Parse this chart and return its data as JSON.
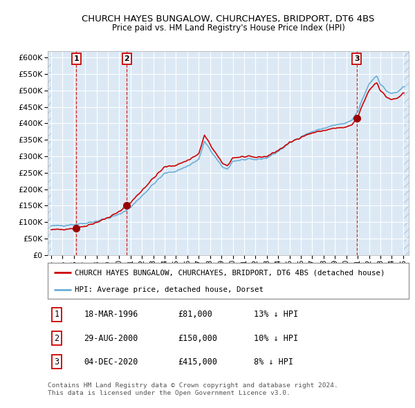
{
  "title1": "CHURCH HAYES BUNGALOW, CHURCHAYES, BRIDPORT, DT6 4BS",
  "title2": "Price paid vs. HM Land Registry's House Price Index (HPI)",
  "legend_house": "CHURCH HAYES BUNGALOW, CHURCHAYES, BRIDPORT, DT6 4BS (detached house)",
  "legend_hpi": "HPI: Average price, detached house, Dorset",
  "sale1_date": "18-MAR-1996",
  "sale1_year": 1996.21,
  "sale1_price": 81000,
  "sale1_label": "1",
  "sale1_pct": "13% ↓ HPI",
  "sale2_date": "29-AUG-2000",
  "sale2_year": 2000.66,
  "sale2_price": 150000,
  "sale2_label": "2",
  "sale2_pct": "10% ↓ HPI",
  "sale3_date": "04-DEC-2020",
  "sale3_year": 2020.92,
  "sale3_price": 415000,
  "sale3_label": "3",
  "sale3_pct": "8% ↓ HPI",
  "xlim_left": 1993.7,
  "xlim_right": 2025.5,
  "ylim_bottom": 0,
  "ylim_top": 620000,
  "bg_color": "#dce9f5",
  "grid_color": "#ffffff",
  "hpi_color": "#6aaed6",
  "price_color": "#cc0000",
  "dashed_color": "#cc0000",
  "marker_color": "#990000",
  "footer": "Contains HM Land Registry data © Crown copyright and database right 2024.\nThis data is licensed under the Open Government Licence v3.0.",
  "yticks": [
    0,
    50000,
    100000,
    150000,
    200000,
    250000,
    300000,
    350000,
    400000,
    450000,
    500000,
    550000,
    600000
  ],
  "hpi_anchors_t": [
    1994.0,
    1995.0,
    1996.0,
    1997.0,
    1998.0,
    1999.0,
    2000.0,
    2001.0,
    2002.0,
    2003.0,
    2004.0,
    2005.0,
    2006.0,
    2007.0,
    2007.5,
    2008.0,
    2009.0,
    2009.5,
    2010.0,
    2011.0,
    2012.0,
    2013.0,
    2014.0,
    2015.0,
    2016.0,
    2017.0,
    2018.0,
    2019.0,
    2020.0,
    2020.5,
    2021.0,
    2021.5,
    2022.0,
    2022.5,
    2022.7,
    2023.0,
    2023.5,
    2024.0,
    2024.5,
    2025.0
  ],
  "hpi_anchors_v": [
    88000,
    90000,
    93000,
    97000,
    103000,
    112000,
    123000,
    145000,
    180000,
    215000,
    248000,
    255000,
    270000,
    290000,
    345000,
    320000,
    270000,
    260000,
    285000,
    290000,
    290000,
    295000,
    315000,
    340000,
    360000,
    375000,
    385000,
    395000,
    400000,
    410000,
    435000,
    480000,
    520000,
    540000,
    545000,
    520000,
    500000,
    490000,
    495000,
    510000
  ]
}
